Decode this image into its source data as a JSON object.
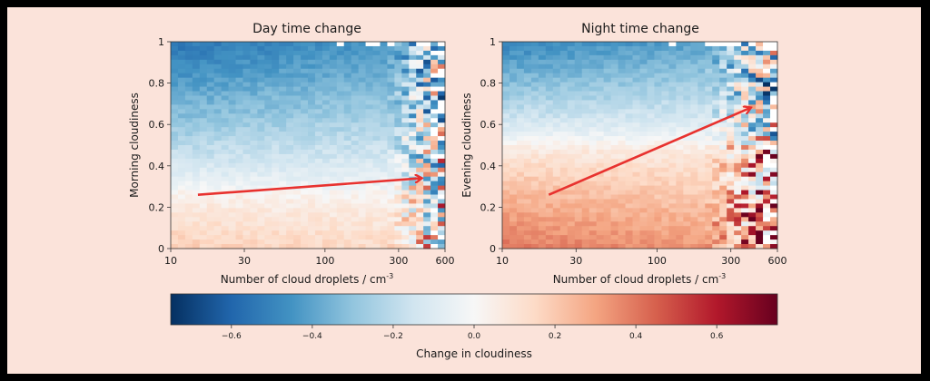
{
  "chart_data": {
    "type": "heatmap",
    "panels": [
      {
        "title": "Day time change",
        "xlabel": "Number of cloud droplets / cm",
        "xlabel_sup": "-3",
        "ylabel": "Morning cloudiness",
        "x_scale": "log",
        "xlim": [
          10,
          600
        ],
        "x_ticks": [
          10,
          30,
          100,
          300,
          600
        ],
        "x_tick_labels": [
          "10",
          "30",
          "100",
          "300",
          "600"
        ],
        "ylim": [
          0,
          1
        ],
        "y_ticks": [
          0,
          0.2,
          0.4,
          0.6,
          0.8,
          1
        ],
        "y_tick_labels": [
          "0",
          "0.2",
          "0.4",
          "0.6",
          "0.8",
          "1"
        ],
        "arrow": {
          "from": [
            15,
            0.26
          ],
          "to": [
            420,
            0.34
          ]
        },
        "pattern": {
          "top_value": -0.55,
          "zero_crossing_y": 0.28,
          "bottom_value": 0.18,
          "noisy_from_droplets": 250
        }
      },
      {
        "title": "Night time change",
        "xlabel": "Number of cloud droplets / cm",
        "xlabel_sup": "-3",
        "ylabel": "Evening cloudiness",
        "x_scale": "log",
        "xlim": [
          10,
          600
        ],
        "x_ticks": [
          10,
          30,
          100,
          300,
          600
        ],
        "x_tick_labels": [
          "10",
          "30",
          "100",
          "300",
          "600"
        ],
        "ylim": [
          0,
          1
        ],
        "y_ticks": [
          0,
          0.2,
          0.4,
          0.6,
          0.8,
          1
        ],
        "y_tick_labels": [
          "0",
          "0.2",
          "0.4",
          "0.6",
          "0.8",
          "1"
        ],
        "arrow": {
          "from": [
            20,
            0.26
          ],
          "to": [
            400,
            0.68
          ]
        },
        "pattern": {
          "top_value": -0.5,
          "zero_crossing_y": 0.52,
          "bottom_value": 0.4,
          "noisy_from_droplets": 200
        }
      }
    ],
    "colorbar": {
      "label": "Change in cloudiness",
      "range": [
        -0.75,
        0.75
      ],
      "ticks": [
        -0.6,
        -0.4,
        -0.2,
        0.0,
        0.2,
        0.4,
        0.6
      ],
      "tick_labels": [
        "−0.6",
        "−0.4",
        "−0.2",
        "0.0",
        "0.2",
        "0.4",
        "0.6"
      ],
      "colormap": "RdBu_r"
    },
    "colors": {
      "background": "#fbe3da",
      "frame": "#000000",
      "arrow": "#e8322f"
    }
  }
}
